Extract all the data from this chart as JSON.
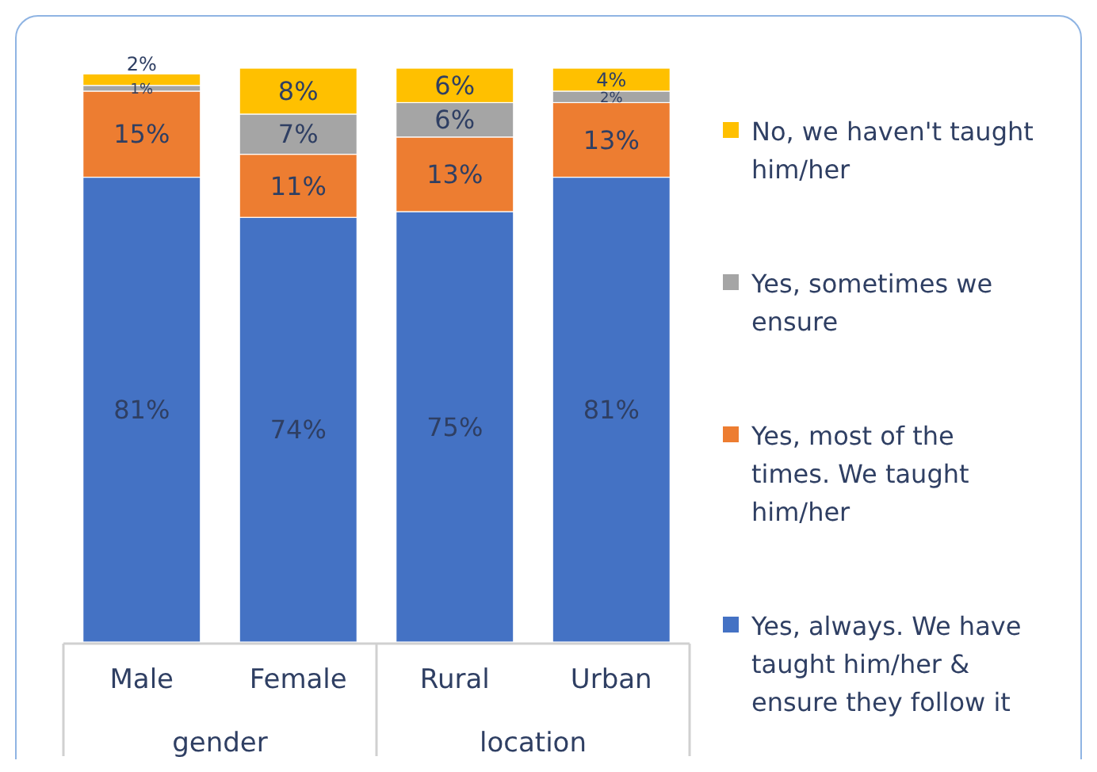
{
  "chart_data": {
    "type": "bar",
    "stacked": true,
    "categories": [
      "Male",
      "Female",
      "Rural",
      "Urban"
    ],
    "ylim": [
      0,
      100
    ],
    "series": [
      {
        "name": "Yes, always. We have taught him/her & ensure they follow it",
        "color": "#4472c4",
        "values": [
          81,
          74,
          75,
          81
        ],
        "value_labels": [
          "81%",
          "74%",
          "75%",
          "81%"
        ]
      },
      {
        "name": "Yes, most of the times. We taught him/her",
        "color": "#ed7d31",
        "values": [
          15,
          11,
          13,
          13
        ],
        "value_labels": [
          "15%",
          "11%",
          "13%",
          "13%"
        ]
      },
      {
        "name": "Yes, sometimes we ensure",
        "color": "#a5a5a5",
        "values": [
          1,
          7,
          6,
          2
        ],
        "value_labels": [
          "1%",
          "7%",
          "6%",
          "2%"
        ]
      },
      {
        "name": "No, we haven't taught him/her",
        "color": "#ffc000",
        "values": [
          2,
          8,
          6,
          4
        ],
        "value_labels": [
          "2%",
          "8%",
          "6%",
          "4%"
        ]
      }
    ],
    "legend": "right",
    "annotations": [
      "gender",
      "location"
    ]
  }
}
